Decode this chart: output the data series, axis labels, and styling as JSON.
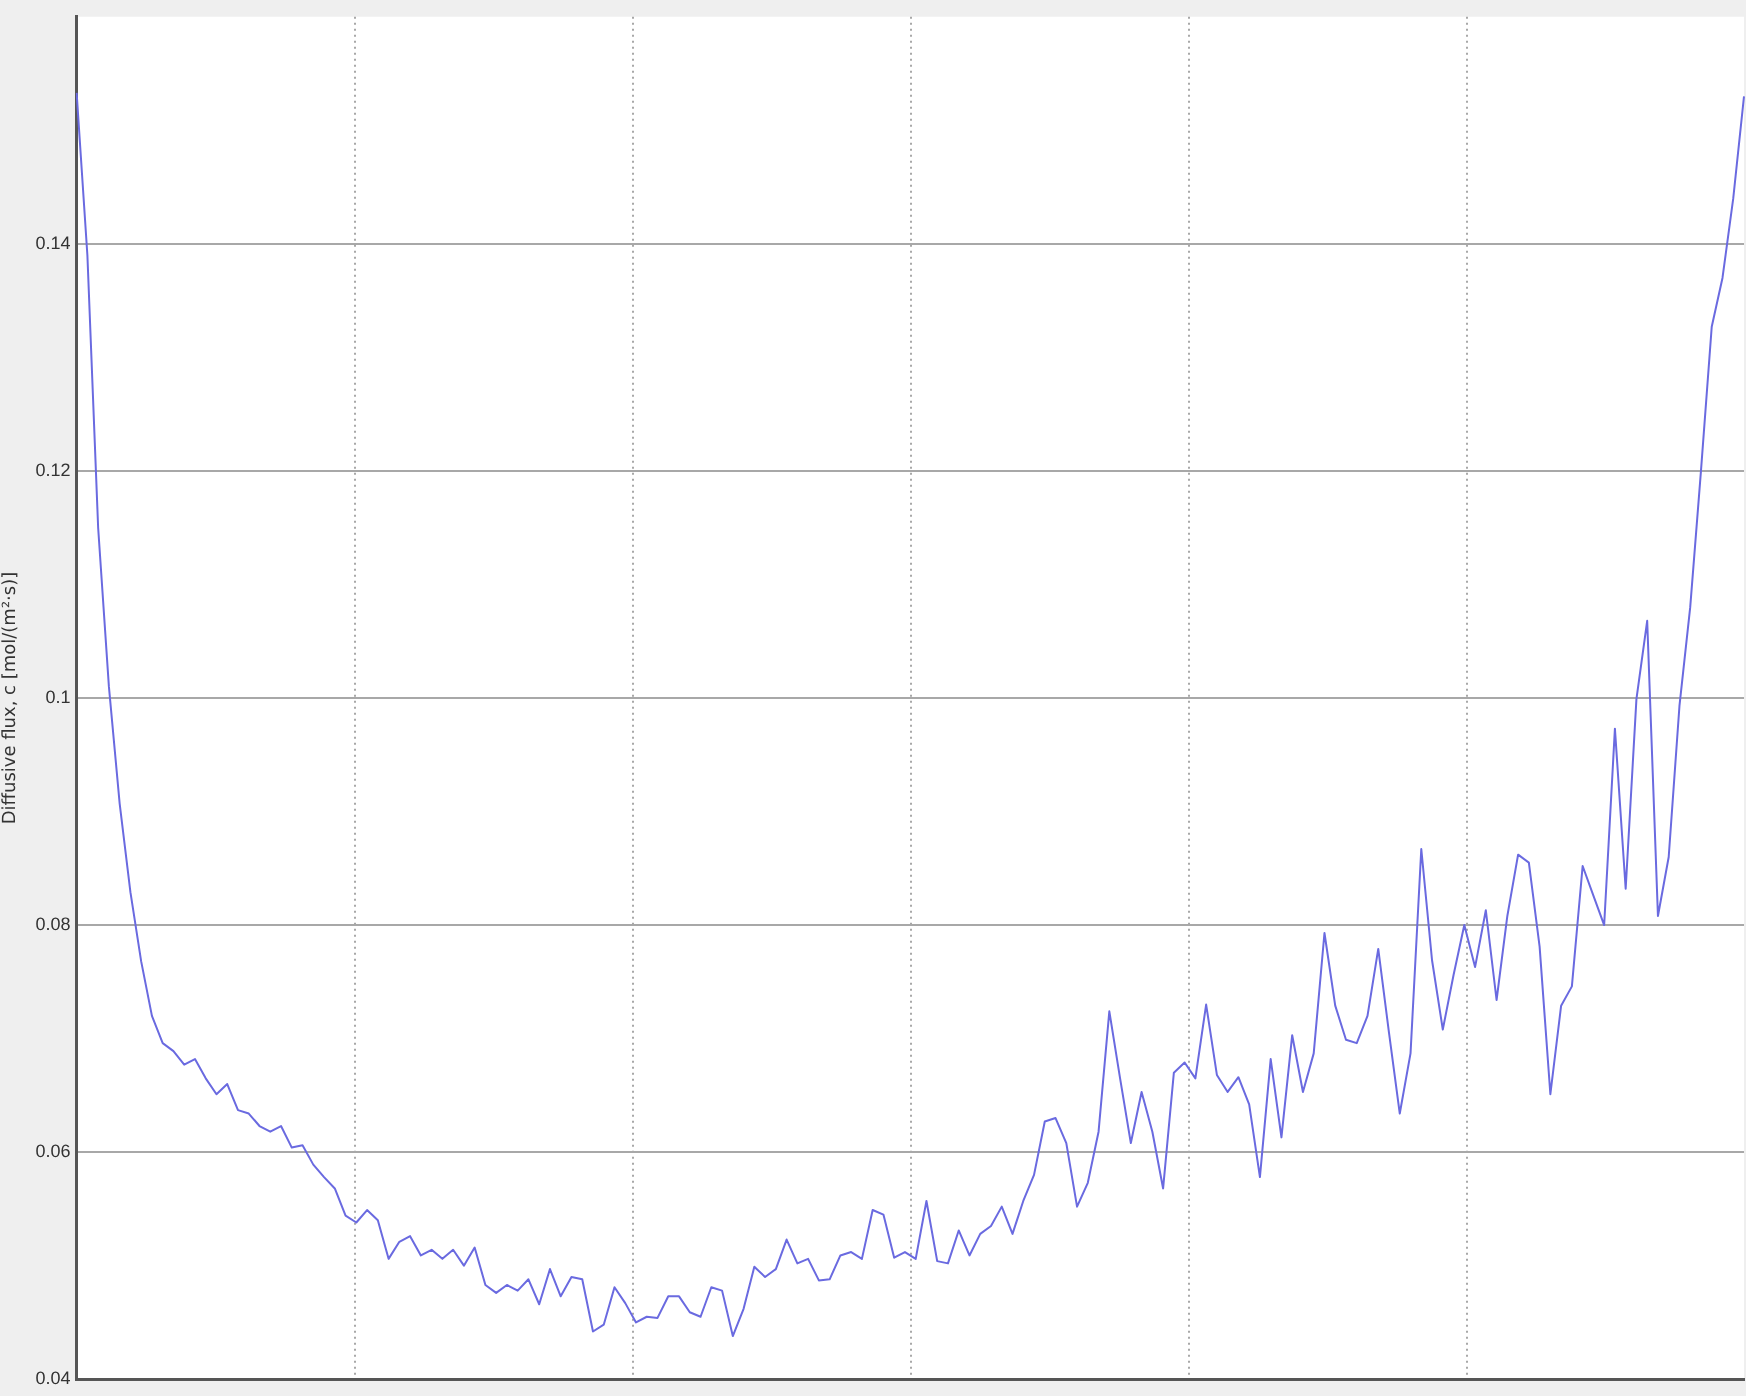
{
  "chart_data": {
    "type": "line",
    "ylabel": "Diffusive flux, c [mol/(m²·s)]",
    "color": "#6a6ae0",
    "categories": [
      null,
      null,
      null,
      null,
      null,
      null,
      null,
      null,
      null,
      null,
      null,
      null,
      null,
      null,
      null,
      null,
      null,
      null,
      null,
      null,
      null,
      null,
      null,
      null,
      null,
      null,
      null,
      null,
      null,
      null,
      null,
      null,
      null,
      null,
      null,
      null,
      null,
      null,
      null,
      null,
      null,
      null,
      null,
      null,
      null,
      null,
      null,
      null,
      null,
      null,
      null,
      null,
      null,
      null,
      null,
      null,
      null,
      null,
      null,
      null,
      null,
      null,
      null,
      null,
      null,
      null,
      null,
      null,
      null,
      null,
      null,
      null,
      null,
      null,
      null,
      null,
      null,
      null,
      null,
      null,
      null,
      null,
      null,
      null,
      null,
      null,
      null,
      null,
      null,
      null,
      null,
      null,
      null,
      null,
      null,
      null,
      null,
      null,
      null,
      null,
      null,
      null,
      null,
      null,
      null,
      null,
      null,
      null,
      null,
      null,
      null,
      null,
      null,
      null,
      null,
      null,
      null,
      null,
      null,
      null,
      null,
      null,
      null,
      null,
      null,
      null,
      null,
      null,
      null,
      null,
      null,
      null,
      null,
      null,
      null,
      null,
      null,
      null,
      null,
      null,
      null,
      null,
      null,
      null,
      null,
      null,
      null,
      null,
      null,
      null,
      null,
      null,
      null,
      null,
      null,
      null
    ],
    "values": [
      0.1533,
      0.139,
      0.115,
      0.101,
      0.0907,
      0.0829,
      0.0768,
      0.072,
      0.0696,
      0.0689,
      0.0677,
      0.0682,
      0.0665,
      0.0651,
      0.066,
      0.0637,
      0.0634,
      0.0623,
      0.0618,
      0.0623,
      0.0604,
      0.0606,
      0.0589,
      0.0578,
      0.0568,
      0.0544,
      0.0538,
      0.0549,
      0.054,
      0.0506,
      0.0521,
      0.0526,
      0.0509,
      0.0514,
      0.0506,
      0.0514,
      0.05,
      0.0516,
      0.0483,
      0.0476,
      0.0483,
      0.0478,
      0.0488,
      0.0466,
      0.0497,
      0.0473,
      0.049,
      0.0488,
      0.0442,
      0.0448,
      0.0481,
      0.0467,
      0.045,
      0.0455,
      0.0454,
      0.0473,
      0.0473,
      0.0459,
      0.0455,
      0.0481,
      0.0478,
      0.0438,
      0.0462,
      0.0499,
      0.049,
      0.0497,
      0.0523,
      0.0502,
      0.0506,
      0.0487,
      0.0488,
      0.0509,
      0.0512,
      0.0506,
      0.0549,
      0.0545,
      0.0507,
      0.0512,
      0.0506,
      0.0557,
      0.0504,
      0.0502,
      0.0531,
      0.0509,
      0.0528,
      0.0535,
      0.0552,
      0.0528,
      0.0557,
      0.058,
      0.0627,
      0.063,
      0.0608,
      0.0552,
      0.0573,
      0.0618,
      0.0724,
      0.0665,
      0.0608,
      0.0653,
      0.0618,
      0.0568,
      0.067,
      0.0679,
      0.0665,
      0.073,
      0.0668,
      0.0653,
      0.0666,
      0.0642,
      0.0578,
      0.0682,
      0.0613,
      0.0703,
      0.0653,
      0.0687,
      0.0793,
      0.0729,
      0.0699,
      0.0696,
      0.072,
      0.0779,
      0.0705,
      0.0634,
      0.0687,
      0.0867,
      0.0769,
      0.0708,
      0.0756,
      0.08,
      0.0763,
      0.0813,
      0.0734,
      0.0808,
      0.0862,
      0.0855,
      0.0781,
      0.0651,
      0.0729,
      0.0746,
      0.0852,
      0.0826,
      0.08,
      0.0973,
      0.0832,
      0.0999,
      0.1068,
      0.0808,
      0.086,
      0.0993,
      0.108,
      0.12,
      0.1327,
      0.137,
      0.144,
      0.153
    ],
    "ylim": [
      0.04,
      0.16
    ],
    "yticks": [
      0.04,
      0.06,
      0.08,
      0.1,
      0.12,
      0.14
    ],
    "grid": true,
    "tick_labels": "y",
    "marker": "none",
    "line_style": "solid",
    "legend": false
  }
}
